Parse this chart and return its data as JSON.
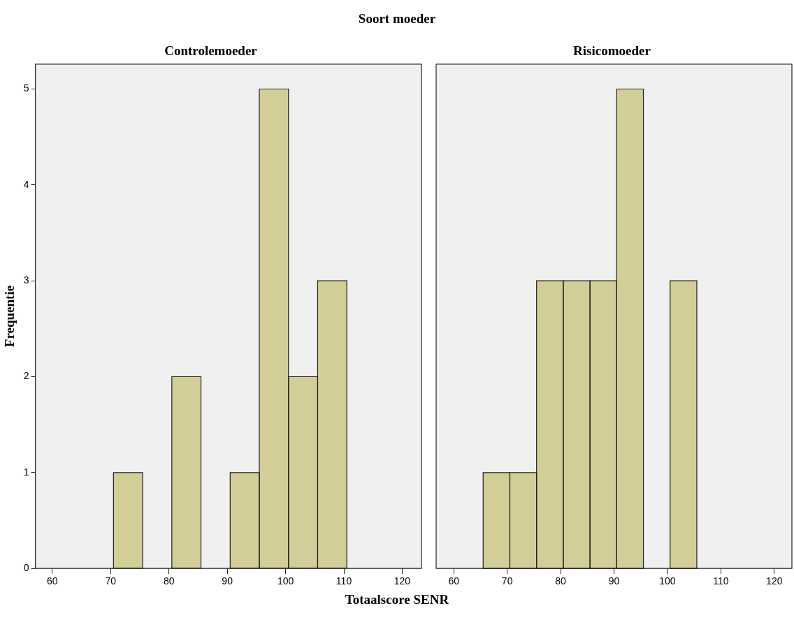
{
  "chart_data": [
    {
      "type": "histogram",
      "title": "Controlemoeder",
      "annotations": [
        "Soort moeder"
      ],
      "xlabel": "Totaalscore SENR",
      "ylabel": "Frequentie",
      "bins": [
        70.5,
        75.5,
        80.5,
        85.5,
        90.5,
        95.5,
        100.5,
        105.5,
        110.5
      ],
      "values": [
        1,
        0,
        2,
        0,
        1,
        5,
        2,
        3
      ],
      "color": "#d3ce97",
      "xlim": [
        57.1,
        123.3
      ],
      "xticks": [
        60,
        70,
        80,
        90,
        100,
        110,
        120
      ],
      "ylim": [
        0,
        5.26
      ],
      "yticks": [
        0,
        1,
        2,
        3,
        4,
        5
      ],
      "grid": false,
      "legend": false
    },
    {
      "type": "histogram",
      "title": "Risicomoeder",
      "bins": [
        65.5,
        70.5,
        75.5,
        80.5,
        85.5,
        90.5,
        95.5,
        100.5,
        105.5
      ],
      "values": [
        1,
        1,
        3,
        3,
        3,
        5,
        0,
        3
      ],
      "color": "#d3ce97",
      "xlim": [
        56.7,
        123.3
      ],
      "xticks": [
        60,
        70,
        80,
        90,
        100,
        110,
        120
      ],
      "ylim": [
        0,
        5.26
      ],
      "tick_labels": "x",
      "grid": false,
      "legend": false
    }
  ]
}
